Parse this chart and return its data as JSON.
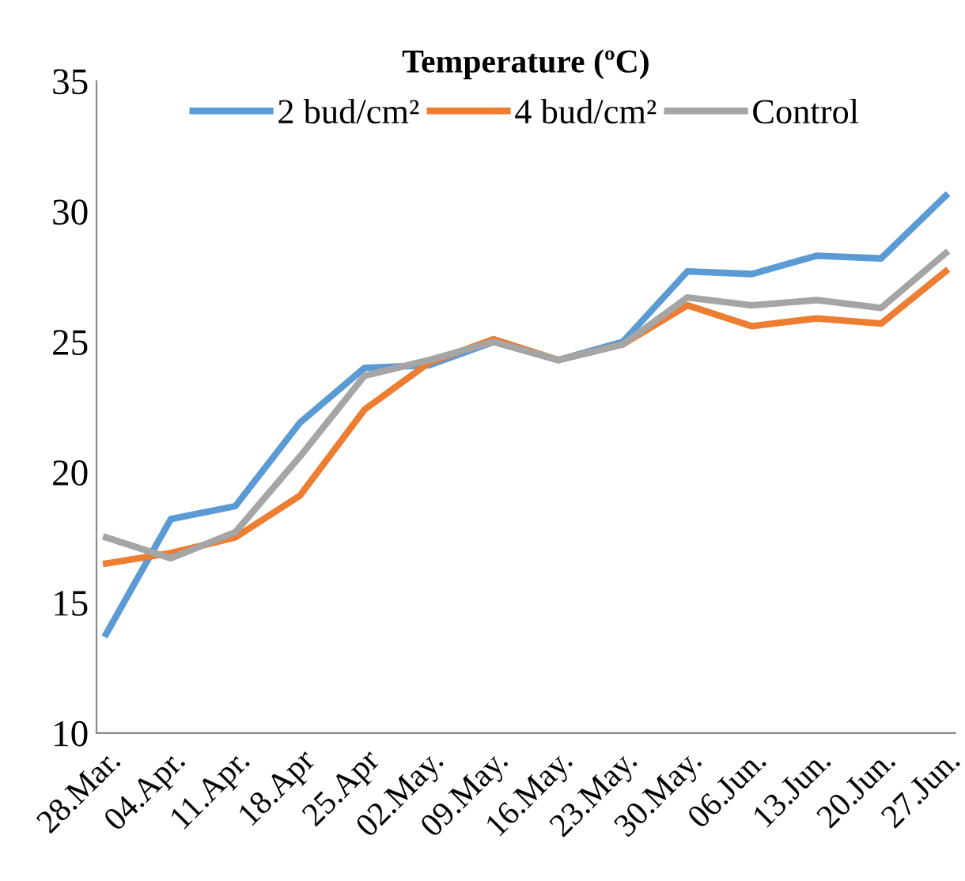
{
  "chart_data": {
    "type": "line",
    "title": "Temperature (ºC)",
    "categories": [
      "28.Mar.",
      "04.Apr.",
      "11.Apr.",
      "18.Apr",
      "25.Apr",
      "02.May.",
      "09.May.",
      "16.May.",
      "23.May.",
      "30.May.",
      "06.Jun.",
      "13.Jun.",
      "20.Jun.",
      "27.Jun."
    ],
    "series": [
      {
        "name": "2 bud/cm²",
        "color": "#5b9bd5",
        "values": [
          13.8,
          18.2,
          18.7,
          21.9,
          24.0,
          24.1,
          25.0,
          24.3,
          25.0,
          27.7,
          27.6,
          28.3,
          28.2,
          30.6
        ]
      },
      {
        "name": "4 bud/cm²",
        "color": "#ed7d31",
        "values": [
          16.5,
          16.9,
          17.5,
          19.1,
          22.4,
          24.2,
          25.1,
          24.3,
          24.9,
          26.4,
          25.6,
          25.9,
          25.7,
          27.7
        ]
      },
      {
        "name": "Control",
        "color": "#a5a5a5",
        "values": [
          17.5,
          16.7,
          17.7,
          20.6,
          23.7,
          24.3,
          25.0,
          24.3,
          24.9,
          26.7,
          26.4,
          26.6,
          26.3,
          28.4
        ]
      }
    ],
    "ylim": [
      10,
      35
    ],
    "yticks": [
      10,
      15,
      20,
      25,
      30,
      35
    ],
    "grid": false,
    "legend": "top",
    "marker": "none",
    "line_style": "solid"
  }
}
